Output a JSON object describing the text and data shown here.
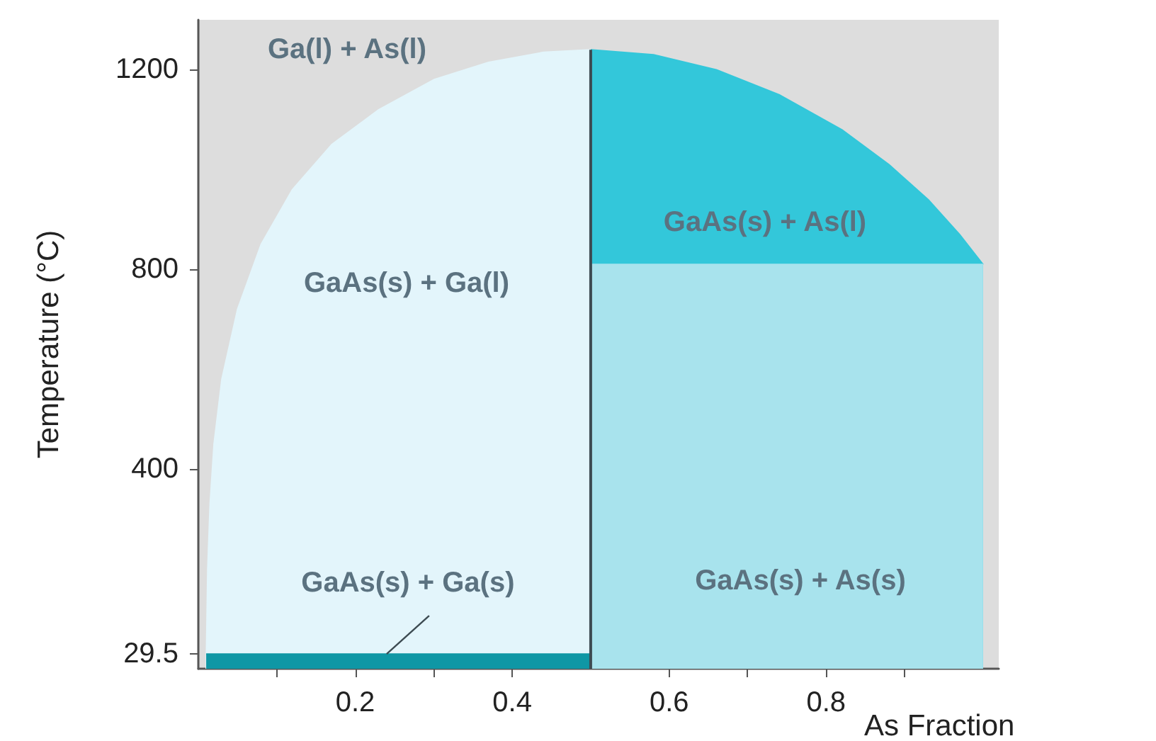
{
  "chart_data": {
    "type": "area",
    "xlabel": "As Fraction",
    "ylabel": "Temperature (°C)",
    "xlim": [
      0,
      1.02
    ],
    "ylim": [
      0,
      1300
    ],
    "xticks": [
      {
        "value": 0.1,
        "label": null
      },
      0.2,
      {
        "value": 0.3,
        "label": null
      },
      0.4,
      0.6,
      {
        "value": 0.7,
        "label": null
      },
      0.8,
      {
        "value": 0.9,
        "label": null
      }
    ],
    "yticks": [
      29.5,
      400,
      800,
      1200
    ],
    "series": [
      {
        "color": "#e3f5fb",
        "x": [
          0.01,
          0.012,
          0.015,
          0.02,
          0.03,
          0.05,
          0.08,
          0.12,
          0.17,
          0.23,
          0.3,
          0.37,
          0.44,
          0.5
        ],
        "values": [
          0,
          200,
          330,
          450,
          580,
          720,
          850,
          960,
          1050,
          1120,
          1180,
          1215,
          1235,
          1240
        ]
      },
      {
        "color": "#33c7da",
        "x": [
          0.5,
          0.58,
          0.66,
          0.74,
          0.82,
          0.88,
          0.93,
          0.97,
          1.0
        ],
        "values": [
          1240,
          1230,
          1200,
          1150,
          1080,
          1010,
          940,
          870,
          810
        ]
      },
      {
        "color": "#a8e3ed",
        "x": [
          0.5,
          1.0
        ],
        "values": [
          810,
          810
        ]
      },
      {
        "color": "#0f97a5",
        "x": [
          0.01,
          0.5
        ],
        "values": [
          29.5,
          29.5
        ]
      },
      {
        "type": "line",
        "color": "#3d4b52",
        "x": [
          0.5,
          0.5
        ],
        "values": [
          0,
          1240
        ]
      }
    ],
    "annotations": [
      "Ga(l) + As(l)",
      "GaAs(s) + Ga(l)",
      "GaAs(s) + As(l)",
      {
        "text": "GaAs(s) + Ga(s)",
        "x": 0.24,
        "y": 29.5
      },
      "GaAs(s) + As(s)"
    ]
  }
}
